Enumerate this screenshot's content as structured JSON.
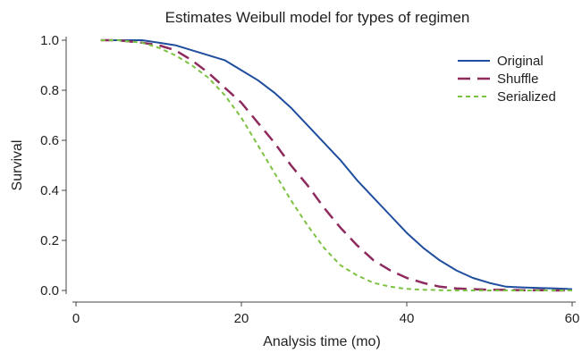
{
  "chart_data": {
    "type": "line",
    "title": "Estimates Weibull model for types of regimen",
    "xlabel": "Analysis time (mo)",
    "ylabel": "Survival",
    "xlim": [
      0,
      60
    ],
    "ylim": [
      0,
      1
    ],
    "x_ticks": [
      0,
      20,
      40,
      60
    ],
    "y_ticks": [
      0.0,
      0.2,
      0.4,
      0.6,
      0.8,
      1.0
    ],
    "x_tick_labels": [
      "0",
      "20",
      "40",
      "60"
    ],
    "y_tick_labels": [
      "0.0",
      "0.2",
      "0.4",
      "0.6",
      "0.8",
      "1.0"
    ],
    "grid": false,
    "legend_position": "top-right",
    "series": [
      {
        "name": "Original",
        "color": "#1f4e9e",
        "dash": "solid",
        "x": [
          3,
          5,
          8,
          10,
          12,
          14,
          16,
          18,
          20,
          22,
          24,
          26,
          28,
          30,
          32,
          34,
          36,
          38,
          40,
          42,
          44,
          46,
          48,
          50,
          52,
          54,
          56,
          58,
          60
        ],
        "y": [
          1.0,
          1.0,
          1.0,
          0.99,
          0.98,
          0.96,
          0.94,
          0.92,
          0.88,
          0.84,
          0.79,
          0.73,
          0.66,
          0.59,
          0.52,
          0.44,
          0.37,
          0.3,
          0.23,
          0.17,
          0.12,
          0.08,
          0.05,
          0.03,
          0.015,
          0.012,
          0.01,
          0.008,
          0.005
        ]
      },
      {
        "name": "Shuffle",
        "color": "#8e2a5e",
        "dash": "long-dash",
        "x": [
          3,
          5,
          8,
          10,
          12,
          14,
          16,
          18,
          20,
          22,
          24,
          26,
          28,
          30,
          32,
          34,
          36,
          38,
          40,
          42,
          44,
          46,
          48,
          50,
          52,
          54,
          56,
          58,
          60
        ],
        "y": [
          1.0,
          1.0,
          0.99,
          0.98,
          0.96,
          0.92,
          0.87,
          0.81,
          0.75,
          0.67,
          0.59,
          0.5,
          0.42,
          0.33,
          0.25,
          0.18,
          0.12,
          0.08,
          0.05,
          0.03,
          0.015,
          0.008,
          0.005,
          0.003,
          0.002,
          0.001,
          0.001,
          0.0,
          0.0
        ]
      },
      {
        "name": "Serialized",
        "color": "#7cc242",
        "dash": "short-dash",
        "x": [
          3,
          5,
          8,
          10,
          12,
          14,
          16,
          18,
          20,
          22,
          24,
          26,
          28,
          30,
          32,
          34,
          36,
          38,
          40,
          42,
          44,
          46,
          48,
          50,
          52,
          54,
          56,
          58,
          60
        ],
        "y": [
          1.0,
          1.0,
          0.99,
          0.97,
          0.94,
          0.9,
          0.85,
          0.78,
          0.69,
          0.58,
          0.47,
          0.36,
          0.26,
          0.17,
          0.1,
          0.06,
          0.03,
          0.015,
          0.006,
          0.003,
          0.001,
          0.0,
          0.0,
          0.0,
          0.0,
          0.0,
          0.0,
          0.0,
          0.0
        ]
      }
    ]
  }
}
